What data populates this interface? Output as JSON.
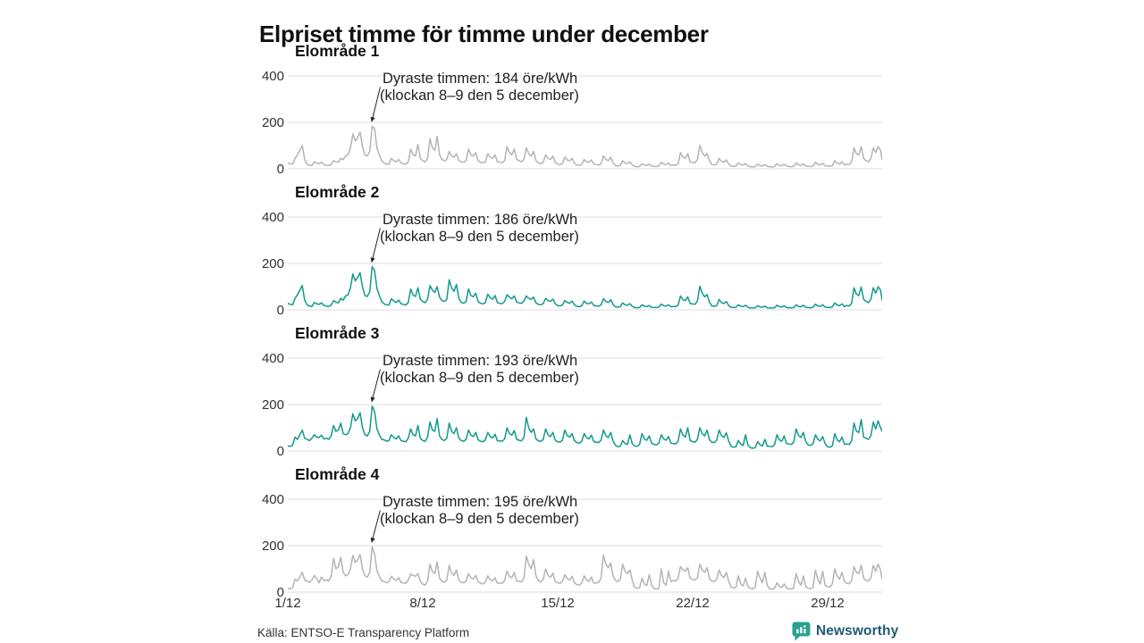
{
  "title": "Elpriset timme för timme under december",
  "source": "Källa: ENTSO-E Transparency Platform",
  "brand": {
    "name": "Newsworthy",
    "icon": "chart-speech-bubble-icon",
    "icon_color": "#2aa18f",
    "text_color": "#1f5a73"
  },
  "axis": {
    "x_ticks": [
      "1/12",
      "8/12",
      "15/12",
      "22/12",
      "29/12"
    ],
    "y_ticks": [
      "400",
      "200",
      "0"
    ]
  },
  "colors": {
    "gray_line": "#b4b4b8",
    "teal_line": "#13998b",
    "grid": "#dcdcdc",
    "text": "#222222",
    "arrow": "#222222"
  },
  "chart_data": [
    {
      "type": "line",
      "name": "Elområde 1",
      "annotation_line1": "Dyraste timmen: 184 öre/kWh",
      "annotation_line2": "(klockan 8–9 den 5 december)",
      "color": "#b4b4b8",
      "unit": "öre/kWh",
      "ylim": [
        0,
        400
      ],
      "x_tick_days": [
        1,
        8,
        15,
        22,
        29
      ],
      "step_hours": 3,
      "peak": {
        "value": 184,
        "day": 5,
        "hour": 8.5
      },
      "values": [
        25,
        22,
        20,
        45,
        60,
        80,
        100,
        40,
        20,
        15,
        14,
        30,
        25,
        22,
        28,
        18,
        15,
        14,
        18,
        35,
        30,
        28,
        45,
        40,
        55,
        60,
        90,
        150,
        120,
        135,
        158,
        95,
        60,
        55,
        75,
        184,
        172,
        90,
        60,
        35,
        25,
        20,
        20,
        45,
        35,
        30,
        40,
        25,
        22,
        20,
        30,
        85,
        60,
        55,
        105,
        45,
        35,
        30,
        45,
        130,
        90,
        80,
        140,
        60,
        40,
        35,
        40,
        75,
        55,
        50,
        65,
        35,
        30,
        28,
        35,
        85,
        60,
        55,
        70,
        35,
        28,
        25,
        30,
        65,
        50,
        45,
        60,
        30,
        28,
        26,
        35,
        95,
        70,
        60,
        85,
        40,
        35,
        30,
        40,
        90,
        65,
        55,
        75,
        35,
        25,
        22,
        28,
        60,
        45,
        40,
        55,
        28,
        20,
        18,
        22,
        50,
        38,
        35,
        45,
        24,
        16,
        15,
        18,
        40,
        30,
        28,
        38,
        20,
        18,
        16,
        22,
        55,
        40,
        35,
        50,
        25,
        14,
        12,
        15,
        35,
        25,
        22,
        30,
        16,
        10,
        9,
        10,
        22,
        16,
        14,
        20,
        12,
        10,
        10,
        12,
        28,
        20,
        18,
        25,
        14,
        16,
        15,
        22,
        70,
        50,
        45,
        65,
        30,
        28,
        25,
        40,
        100,
        70,
        55,
        65,
        35,
        18,
        16,
        20,
        45,
        32,
        28,
        38,
        20,
        12,
        10,
        12,
        25,
        18,
        16,
        22,
        12,
        9,
        8,
        9,
        20,
        14,
        12,
        18,
        10,
        9,
        8,
        10,
        22,
        15,
        13,
        20,
        11,
        10,
        9,
        11,
        25,
        17,
        15,
        22,
        12,
        10,
        10,
        12,
        28,
        19,
        16,
        24,
        13,
        12,
        11,
        14,
        35,
        24,
        20,
        30,
        16,
        20,
        18,
        30,
        90,
        65,
        60,
        95,
        45,
        35,
        30,
        45,
        90,
        70,
        95,
        80,
        40
      ]
    },
    {
      "type": "line",
      "name": "Elområde 2",
      "annotation_line1": "Dyraste timmen: 186 öre/kWh",
      "annotation_line2": "(klockan 8–9 den 5 december)",
      "color": "#13998b",
      "unit": "öre/kWh",
      "ylim": [
        0,
        400
      ],
      "x_tick_days": [
        1,
        8,
        15,
        22,
        29
      ],
      "step_hours": 3,
      "peak": {
        "value": 186,
        "day": 5,
        "hour": 8.5
      },
      "values": [
        28,
        24,
        22,
        50,
        65,
        85,
        105,
        42,
        22,
        16,
        15,
        32,
        26,
        24,
        30,
        20,
        16,
        15,
        20,
        40,
        34,
        30,
        50,
        42,
        60,
        65,
        95,
        155,
        125,
        140,
        160,
        98,
        62,
        58,
        78,
        186,
        170,
        92,
        62,
        36,
        26,
        21,
        21,
        48,
        38,
        32,
        42,
        26,
        24,
        21,
        32,
        90,
        64,
        58,
        95,
        46,
        36,
        31,
        46,
        105,
        85,
        75,
        100,
        55,
        40,
        36,
        45,
        130,
        95,
        80,
        110,
        50,
        32,
        29,
        36,
        90,
        62,
        56,
        72,
        36,
        28,
        26,
        31,
        68,
        52,
        46,
        62,
        31,
        28,
        27,
        36,
        65,
        55,
        48,
        60,
        34,
        30,
        28,
        38,
        60,
        50,
        45,
        55,
        30,
        24,
        22,
        27,
        50,
        40,
        36,
        46,
        26,
        19,
        17,
        21,
        40,
        32,
        29,
        38,
        22,
        15,
        14,
        17,
        38,
        28,
        26,
        34,
        19,
        17,
        16,
        21,
        48,
        36,
        32,
        44,
        23,
        13,
        12,
        14,
        30,
        22,
        20,
        27,
        15,
        10,
        9,
        10,
        22,
        16,
        14,
        19,
        11,
        10,
        10,
        12,
        25,
        18,
        16,
        22,
        13,
        15,
        14,
        20,
        60,
        44,
        40,
        56,
        27,
        26,
        24,
        38,
        102,
        72,
        56,
        66,
        34,
        17,
        15,
        19,
        45,
        32,
        27,
        36,
        19,
        11,
        10,
        11,
        22,
        16,
        14,
        20,
        11,
        8,
        8,
        9,
        18,
        13,
        11,
        16,
        9,
        8,
        8,
        9,
        20,
        14,
        12,
        18,
        10,
        9,
        9,
        10,
        22,
        15,
        13,
        20,
        11,
        10,
        9,
        11,
        25,
        17,
        15,
        22,
        12,
        11,
        10,
        13,
        30,
        21,
        18,
        26,
        14,
        19,
        17,
        28,
        95,
        68,
        62,
        98,
        46,
        36,
        31,
        46,
        95,
        72,
        100,
        85,
        42
      ]
    },
    {
      "type": "line",
      "name": "Elområde 3",
      "annotation_line1": "Dyraste timmen: 193 öre/kWh",
      "annotation_line2": "(klockan 8–9 den 5 december)",
      "color": "#13998b",
      "unit": "öre/kWh",
      "ylim": [
        0,
        400
      ],
      "x_tick_days": [
        1,
        8,
        15,
        22,
        29
      ],
      "step_hours": 3,
      "peak": {
        "value": 193,
        "day": 5,
        "hour": 8.5
      },
      "values": [
        22,
        20,
        25,
        60,
        50,
        70,
        90,
        55,
        50,
        45,
        55,
        70,
        60,
        58,
        68,
        52,
        55,
        50,
        65,
        110,
        85,
        90,
        120,
        75,
        70,
        75,
        100,
        160,
        130,
        140,
        165,
        100,
        70,
        65,
        85,
        193,
        170,
        95,
        70,
        50,
        48,
        42,
        45,
        70,
        58,
        52,
        65,
        45,
        42,
        40,
        55,
        95,
        70,
        65,
        110,
        55,
        45,
        42,
        60,
        125,
        90,
        85,
        140,
        65,
        50,
        45,
        55,
        120,
        85,
        75,
        100,
        55,
        45,
        42,
        50,
        90,
        68,
        62,
        80,
        48,
        42,
        40,
        48,
        80,
        62,
        56,
        72,
        44,
        44,
        42,
        52,
        100,
        75,
        68,
        88,
        50,
        46,
        44,
        58,
        145,
        100,
        80,
        95,
        52,
        44,
        42,
        50,
        95,
        70,
        62,
        80,
        46,
        40,
        38,
        46,
        90,
        66,
        60,
        75,
        44,
        36,
        34,
        42,
        75,
        58,
        52,
        68,
        40,
        38,
        36,
        46,
        90,
        66,
        58,
        80,
        42,
        25,
        18,
        20,
        45,
        32,
        28,
        70,
        30,
        22,
        20,
        28,
        75,
        52,
        46,
        65,
        34,
        28,
        26,
        34,
        70,
        52,
        46,
        62,
        34,
        32,
        30,
        42,
        95,
        68,
        60,
        100,
        45,
        40,
        38,
        50,
        100,
        75,
        65,
        90,
        48,
        38,
        36,
        46,
        90,
        66,
        58,
        78,
        42,
        20,
        16,
        18,
        45,
        30,
        24,
        70,
        25,
        14,
        12,
        14,
        40,
        26,
        22,
        50,
        20,
        20,
        18,
        26,
        70,
        48,
        42,
        65,
        32,
        30,
        28,
        38,
        95,
        66,
        58,
        80,
        40,
        26,
        24,
        32,
        70,
        50,
        44,
        62,
        32,
        18,
        16,
        22,
        75,
        48,
        40,
        60,
        30,
        30,
        28,
        45,
        120,
        85,
        80,
        135,
        60,
        55,
        50,
        65,
        125,
        95,
        130,
        100,
        85
      ]
    },
    {
      "type": "line",
      "name": "Elområde 4",
      "annotation_line1": "Dyraste timmen: 195 öre/kWh",
      "annotation_line2": "(klockan 8–9 den 5 december)",
      "color": "#b4b4b8",
      "unit": "öre/kWh",
      "ylim": [
        0,
        400
      ],
      "x_tick_days": [
        1,
        8,
        15,
        22,
        29
      ],
      "step_hours": 3,
      "peak": {
        "value": 195,
        "day": 5,
        "hour": 8.5
      },
      "values": [
        15,
        14,
        20,
        55,
        48,
        65,
        85,
        52,
        48,
        42,
        52,
        72,
        58,
        40,
        65,
        50,
        52,
        48,
        68,
        145,
        100,
        110,
        150,
        85,
        70,
        75,
        100,
        158,
        128,
        138,
        162,
        98,
        70,
        65,
        85,
        195,
        165,
        92,
        68,
        48,
        46,
        40,
        44,
        68,
        56,
        50,
        62,
        42,
        40,
        38,
        52,
        78,
        72,
        68,
        80,
        48,
        34,
        30,
        48,
        120,
        88,
        80,
        130,
        60,
        46,
        42,
        52,
        115,
        82,
        72,
        95,
        52,
        42,
        40,
        48,
        80,
        62,
        56,
        72,
        44,
        38,
        35,
        44,
        70,
        54,
        48,
        62,
        38,
        40,
        38,
        50,
        90,
        68,
        62,
        85,
        48,
        46,
        44,
        60,
        155,
        120,
        100,
        140,
        70,
        48,
        44,
        54,
        100,
        72,
        64,
        82,
        46,
        40,
        38,
        46,
        75,
        58,
        52,
        68,
        40,
        32,
        30,
        40,
        70,
        52,
        46,
        65,
        38,
        40,
        42,
        60,
        160,
        120,
        105,
        125,
        70,
        50,
        45,
        55,
        120,
        90,
        80,
        95,
        50,
        20,
        16,
        18,
        60,
        35,
        28,
        75,
        30,
        15,
        13,
        16,
        100,
        40,
        30,
        90,
        45,
        50,
        48,
        60,
        110,
        95,
        90,
        105,
        60,
        55,
        52,
        62,
        120,
        95,
        85,
        105,
        58,
        48,
        45,
        55,
        95,
        72,
        62,
        85,
        45,
        22,
        18,
        20,
        70,
        35,
        26,
        60,
        24,
        16,
        14,
        22,
        90,
        60,
        40,
        85,
        28,
        14,
        13,
        15,
        40,
        25,
        20,
        35,
        18,
        14,
        13,
        18,
        80,
        45,
        30,
        70,
        24,
        16,
        15,
        20,
        95,
        55,
        35,
        90,
        30,
        24,
        22,
        35,
        100,
        70,
        55,
        85,
        45,
        38,
        36,
        50,
        110,
        85,
        80,
        115,
        60,
        50,
        48,
        62,
        115,
        90,
        120,
        95,
        55
      ]
    }
  ]
}
